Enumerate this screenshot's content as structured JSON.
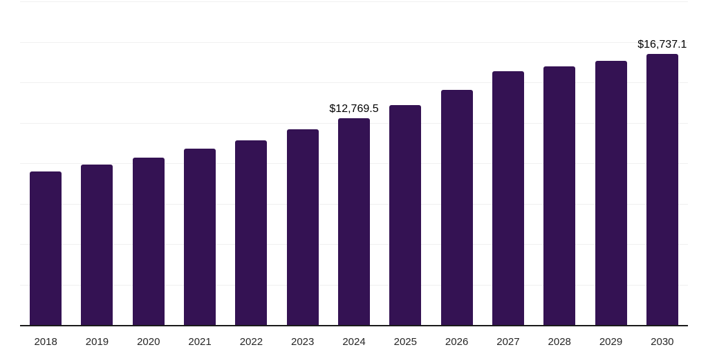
{
  "chart_data": {
    "type": "bar",
    "title": "",
    "xlabel": "",
    "ylabel": "",
    "categories": [
      "2018",
      "2019",
      "2020",
      "2021",
      "2022",
      "2023",
      "2024",
      "2025",
      "2026",
      "2027",
      "2028",
      "2029",
      "2030"
    ],
    "values": [
      9500,
      9900,
      10330,
      10900,
      11400,
      12080,
      12769.5,
      13570,
      14540,
      15700,
      15990,
      16340,
      16737.1
    ],
    "data_labels": [
      "",
      "",
      "",
      "",
      "",
      "",
      "$12,769.5",
      "",
      "",
      "",
      "",
      "",
      "$16,737.1"
    ],
    "ylim": [
      0,
      20000
    ],
    "gridline_interval": 2500,
    "grid": "horizontal-only",
    "legend": "none",
    "y_axis_tick_labels": "none",
    "colors": {
      "bar": "#341253",
      "gridline": "#f0f0f0",
      "axis_line": "#1a1a1a",
      "tick_label": "#262626",
      "data_label": "#000000",
      "background": "#ffffff"
    }
  }
}
